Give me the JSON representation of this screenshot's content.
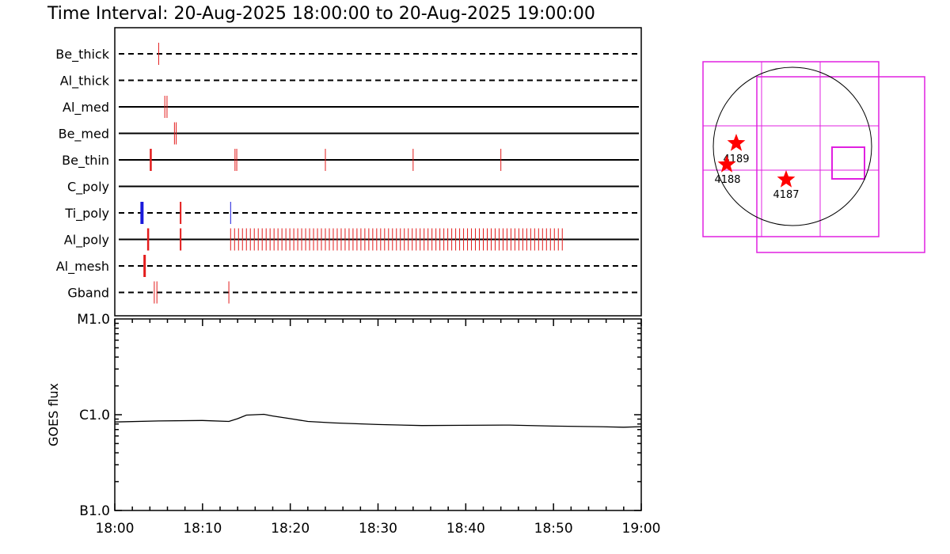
{
  "title": "Time Interval: 20-Aug-2025 18:00:00 to 20-Aug-2025 19:00:00",
  "colors": {
    "axis": "#000000",
    "event_red": "#e31b1b",
    "event_blue": "#1a1adb",
    "fov_magenta": "#e020e0",
    "flare_star": "#ff0000"
  },
  "chart_data": [
    {
      "type": "event-timeline",
      "x_unit": "minutes after 18:00",
      "xlim": [
        0,
        60
      ],
      "channels": [
        {
          "name": "Be_thick",
          "line": "dashed",
          "events": [
            {
              "t": 5.0,
              "color": "red",
              "w": 1
            }
          ]
        },
        {
          "name": "Al_thick",
          "line": "dashed",
          "events": []
        },
        {
          "name": "Al_med",
          "line": "solid",
          "events": [
            {
              "t": 5.7,
              "color": "red",
              "w": 1
            },
            {
              "t": 5.95,
              "color": "red",
              "w": 1
            }
          ]
        },
        {
          "name": "Be_med",
          "line": "solid",
          "events": [
            {
              "t": 6.8,
              "color": "red",
              "w": 1
            },
            {
              "t": 7.0,
              "color": "red",
              "w": 1
            }
          ]
        },
        {
          "name": "Be_thin",
          "line": "solid",
          "events": [
            {
              "t": 4.1,
              "color": "red",
              "w": 2.5
            },
            {
              "t": 13.7,
              "color": "red",
              "w": 1
            },
            {
              "t": 13.9,
              "color": "red",
              "w": 1
            },
            {
              "t": 24.0,
              "color": "red",
              "w": 1
            },
            {
              "t": 34.0,
              "color": "red",
              "w": 1
            },
            {
              "t": 44.0,
              "color": "red",
              "w": 1
            }
          ]
        },
        {
          "name": "C_poly",
          "line": "solid",
          "events": []
        },
        {
          "name": "Ti_poly",
          "line": "dashed",
          "events": [
            {
              "t": 3.1,
              "color": "blue",
              "w": 4
            },
            {
              "t": 7.5,
              "color": "red",
              "w": 2
            },
            {
              "t": 13.2,
              "color": "blue",
              "w": 1
            }
          ]
        },
        {
          "name": "Al_poly",
          "line": "solid",
          "events": [
            {
              "t": 3.8,
              "color": "red",
              "w": 2.5
            },
            {
              "t": 7.5,
              "color": "red",
              "w": 2
            }
          ],
          "burst": {
            "start": 13.2,
            "end": 51.3,
            "step": 0.45,
            "color": "red"
          }
        },
        {
          "name": "Al_mesh",
          "line": "dashed",
          "events": [
            {
              "t": 3.4,
              "color": "red",
              "w": 3
            }
          ]
        },
        {
          "name": "Gband",
          "line": "dashed",
          "events": [
            {
              "t": 4.5,
              "color": "red",
              "w": 1
            },
            {
              "t": 4.8,
              "color": "red",
              "w": 1
            },
            {
              "t": 13.0,
              "color": "red",
              "w": 1
            }
          ]
        }
      ]
    },
    {
      "type": "line",
      "ylabel": "GOES flux",
      "y_scale": "log",
      "y_ticks": [
        "M1.0",
        "C1.0",
        "B1.0"
      ],
      "ylim": [
        1e-07,
        1e-05
      ],
      "x_ticks": [
        "18:00",
        "18:10",
        "18:20",
        "18:30",
        "18:40",
        "18:50",
        "19:00"
      ],
      "xlim": [
        0,
        60
      ],
      "series": [
        {
          "x": [
            0,
            5,
            10,
            13,
            14,
            15,
            16,
            17,
            18,
            20,
            22,
            25,
            30,
            35,
            40,
            45,
            50,
            55,
            58,
            60
          ],
          "y": [
            8.4e-07,
            8.6e-07,
            8.7e-07,
            8.5e-07,
            9.1e-07,
            9.9e-07,
            1e-06,
            1.01e-06,
            9.7e-07,
            9.1e-07,
            8.5e-07,
            8.2e-07,
            7.9e-07,
            7.7e-07,
            7.75e-07,
            7.8e-07,
            7.6e-07,
            7.5e-07,
            7.4e-07,
            7.5e-07
          ]
        }
      ]
    }
  ],
  "sun_panel": {
    "flares": [
      {
        "label": "4189"
      },
      {
        "label": "4188"
      },
      {
        "label": "4187"
      }
    ]
  }
}
